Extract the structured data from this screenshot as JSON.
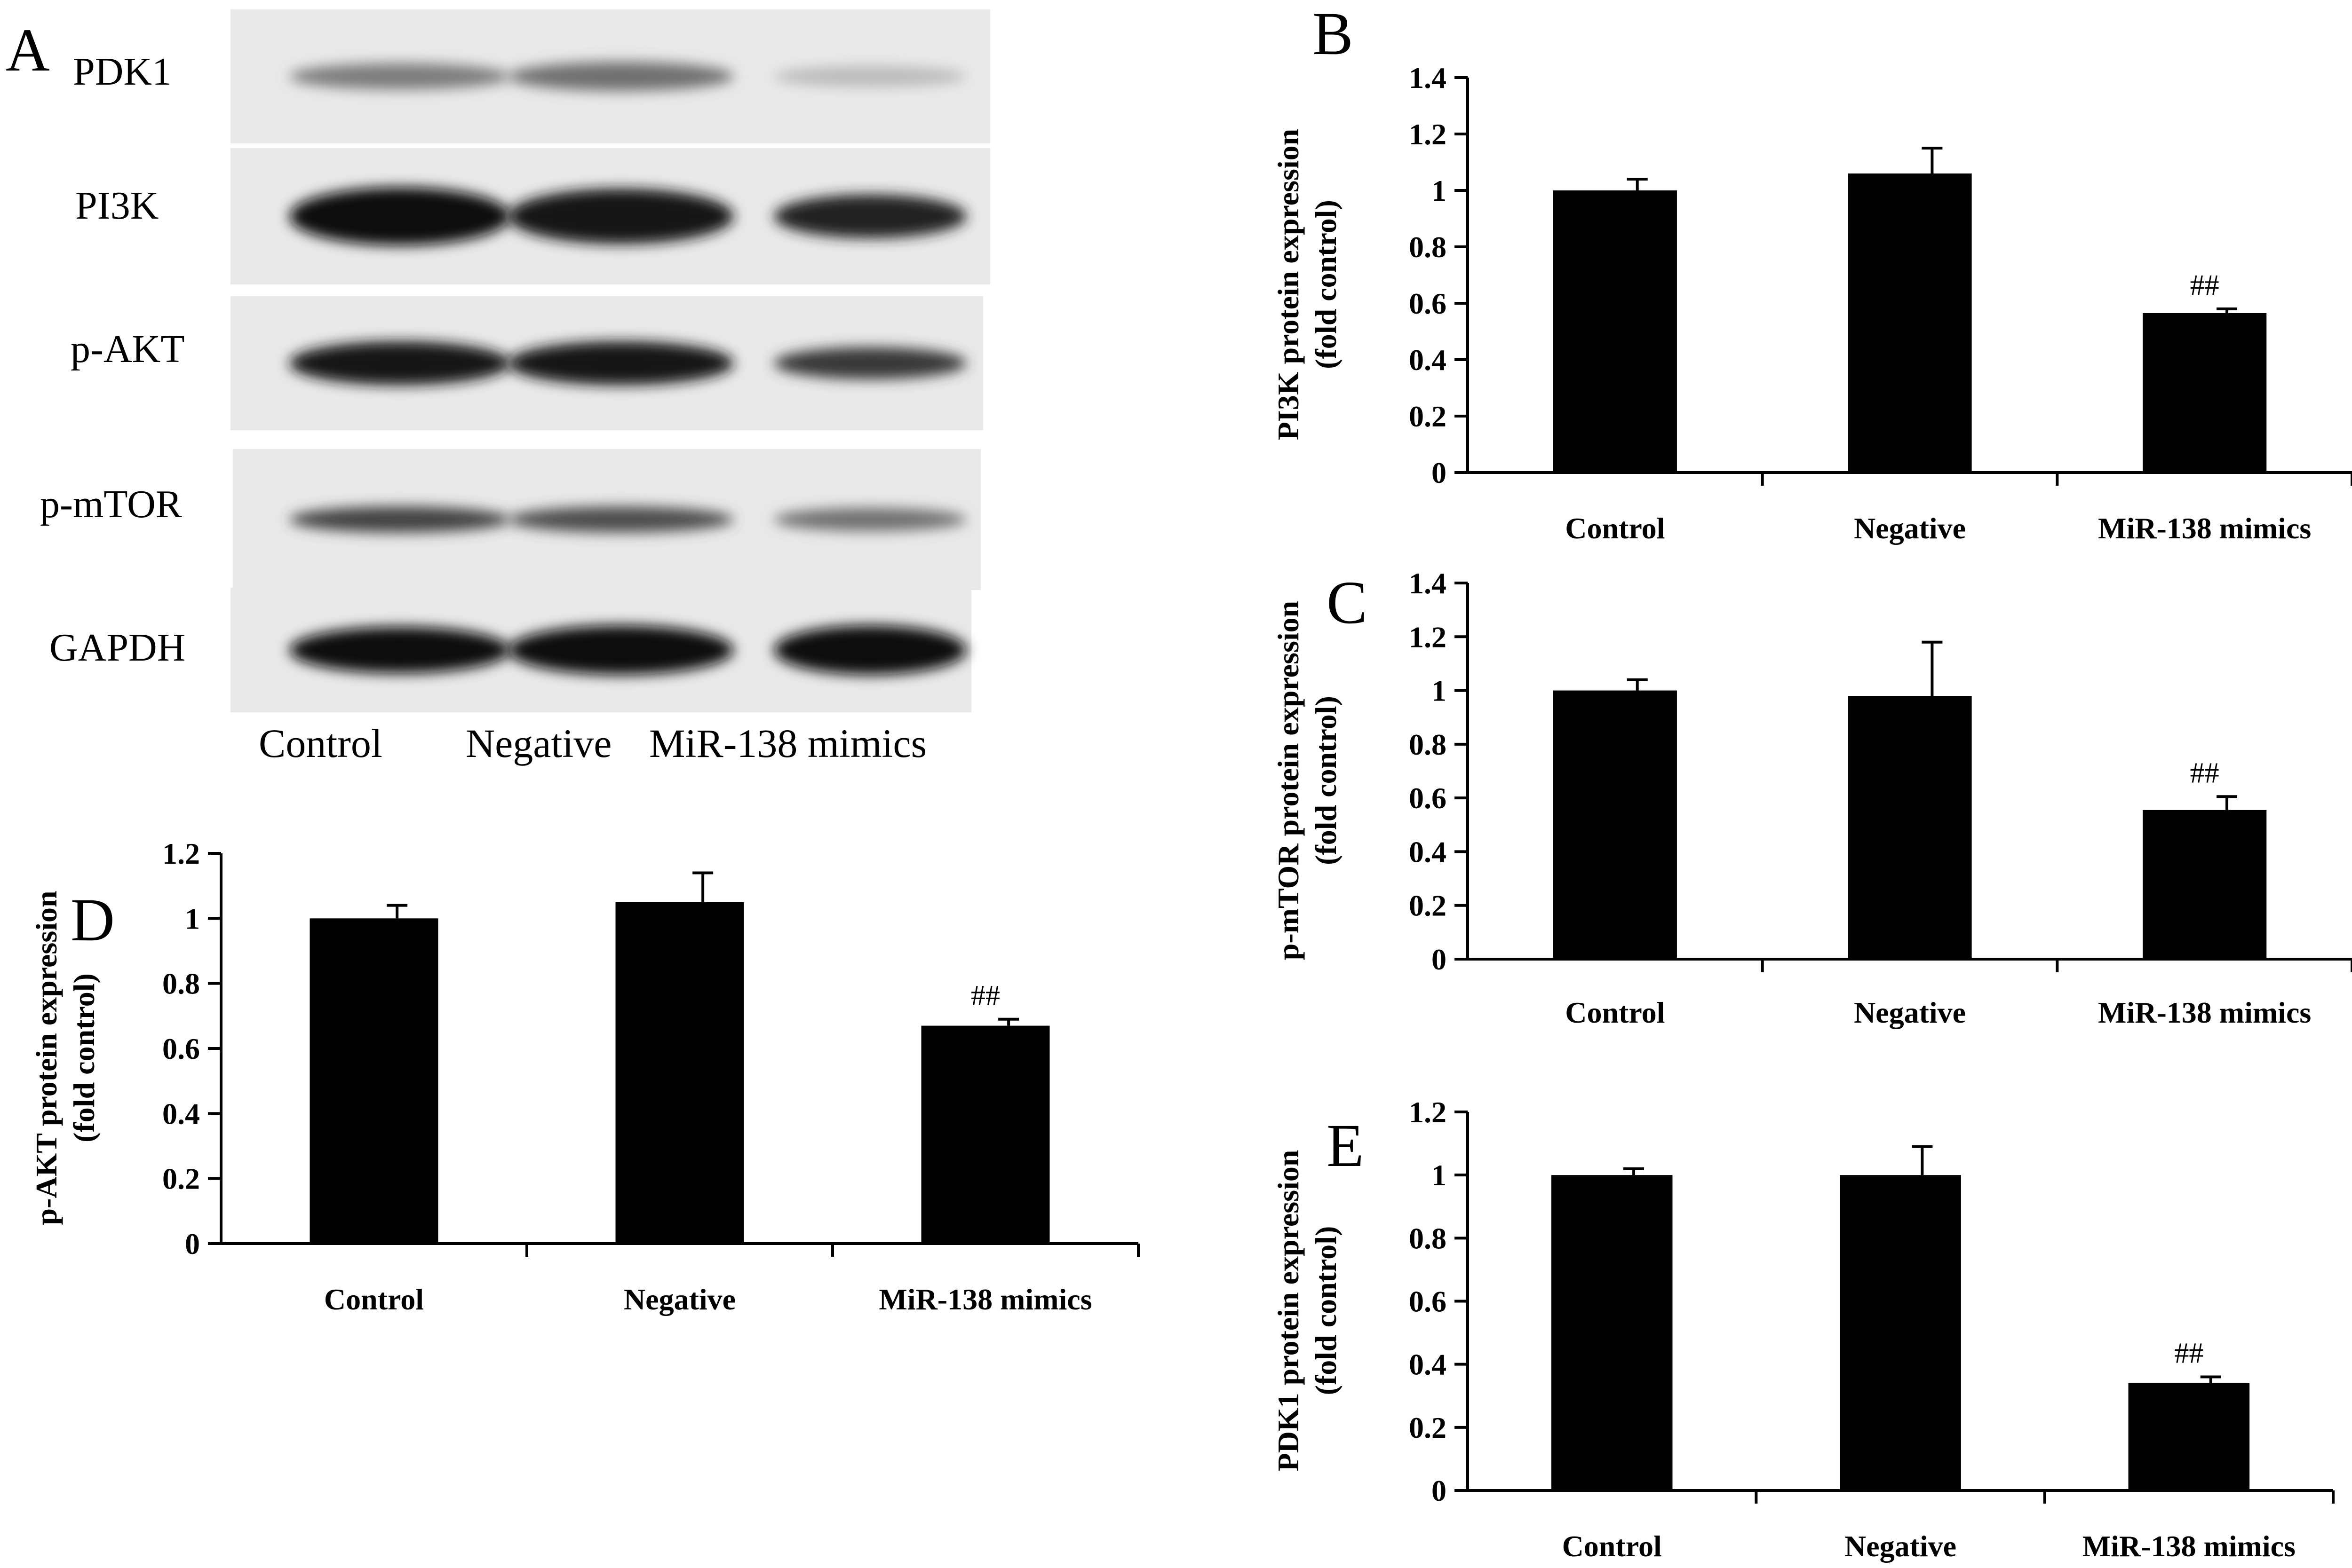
{
  "figure_labels": {
    "panel_a": "A",
    "panel_b": "B",
    "panel_c": "C",
    "panel_d": "D",
    "panel_e": "E"
  },
  "western_blot": {
    "rows": [
      {
        "label": "PDK1",
        "intensity": [
          0.5,
          0.55,
          0.22
        ],
        "thickness": [
          0.45,
          0.5,
          0.35
        ]
      },
      {
        "label": "PI3K",
        "intensity": [
          1.0,
          0.95,
          0.9
        ],
        "thickness": [
          1.0,
          0.95,
          0.75
        ]
      },
      {
        "label": "p-AKT",
        "intensity": [
          0.95,
          0.95,
          0.8
        ],
        "thickness": [
          0.75,
          0.75,
          0.55
        ]
      },
      {
        "label": "p-mTOR",
        "intensity": [
          0.75,
          0.7,
          0.55
        ],
        "thickness": [
          0.45,
          0.45,
          0.4
        ]
      },
      {
        "label": "GAPDH",
        "intensity": [
          1.0,
          1.0,
          1.0
        ],
        "thickness": [
          0.8,
          0.85,
          0.85
        ]
      }
    ],
    "lanes": [
      "Control",
      "Negative",
      "MiR-138 mimics"
    ]
  },
  "chart_data": [
    {
      "id": "B",
      "type": "bar",
      "categories": [
        "Control",
        "Negative",
        "MiR-138 mimics"
      ],
      "values": [
        1.0,
        1.06,
        0.565
      ],
      "errors": [
        0.04,
        0.09,
        0.015
      ],
      "annotations": [
        "",
        "",
        "##"
      ],
      "ylabel_line1": "PI3K  protein expression",
      "ylabel_line2": "(fold control)",
      "ylim": [
        0,
        1.4
      ],
      "ticks": [
        "0",
        "0.2",
        "0.4",
        "0.6",
        "0.8",
        "1",
        "1.2",
        "1.4"
      ],
      "bar_color": "#000000"
    },
    {
      "id": "C",
      "type": "bar",
      "categories": [
        "Control",
        "Negative",
        "MiR-138 mimics"
      ],
      "values": [
        1.0,
        0.98,
        0.555
      ],
      "errors": [
        0.04,
        0.2,
        0.05
      ],
      "annotations": [
        "",
        "",
        "##"
      ],
      "ylabel_line1": "p-mTOR protein expression",
      "ylabel_line2": "(fold control)",
      "ylim": [
        0,
        1.4
      ],
      "ticks": [
        "0",
        "0.2",
        "0.4",
        "0.6",
        "0.8",
        "1",
        "1.2",
        "1.4"
      ],
      "bar_color": "#000000"
    },
    {
      "id": "D",
      "type": "bar",
      "categories": [
        "Control",
        "Negative",
        "MiR-138 mimics"
      ],
      "values": [
        1.0,
        1.05,
        0.67
      ],
      "errors": [
        0.04,
        0.09,
        0.02
      ],
      "annotations": [
        "",
        "",
        "##"
      ],
      "ylabel_line1": "p-AKT protein expression",
      "ylabel_line2": "(fold control)",
      "ylim": [
        0,
        1.2
      ],
      "ticks": [
        "0",
        "0.2",
        "0.4",
        "0.6",
        "0.8",
        "1",
        "1.2"
      ],
      "bar_color": "#000000"
    },
    {
      "id": "E",
      "type": "bar",
      "categories": [
        "Control",
        "Negative",
        "MiR-138 mimics"
      ],
      "values": [
        1.0,
        1.0,
        0.34
      ],
      "errors": [
        0.02,
        0.09,
        0.02
      ],
      "annotations": [
        "",
        "",
        "##"
      ],
      "ylabel_line1": "PDK1 protein expression",
      "ylabel_line2": "(fold control)",
      "ylim": [
        0,
        1.2
      ],
      "ticks": [
        "0",
        "0.2",
        "0.4",
        "0.6",
        "0.8",
        "1",
        "1.2"
      ],
      "bar_color": "#000000"
    }
  ]
}
